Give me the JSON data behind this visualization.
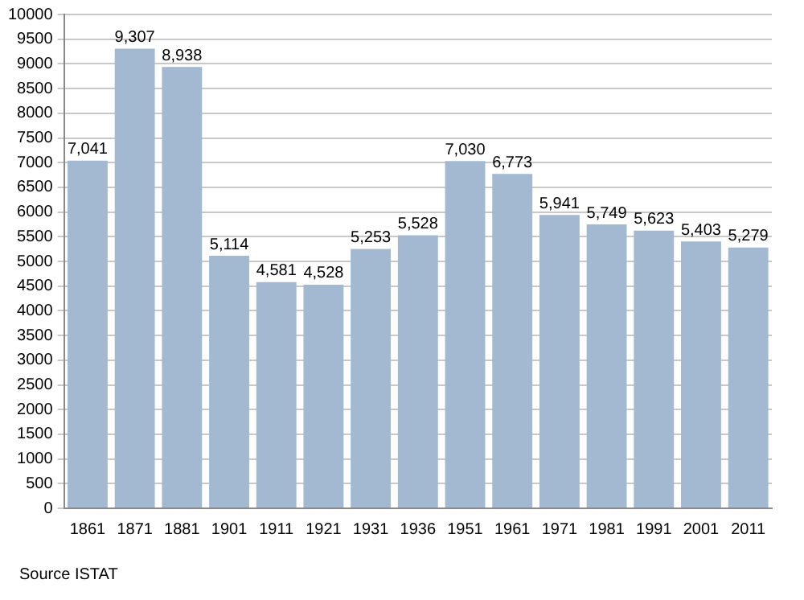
{
  "chart_data": {
    "type": "bar",
    "categories": [
      "1861",
      "1871",
      "1881",
      "1901",
      "1911",
      "1921",
      "1931",
      "1936",
      "1951",
      "1961",
      "1971",
      "1981",
      "1991",
      "2001",
      "2011"
    ],
    "values": [
      7041,
      9307,
      8938,
      5114,
      4581,
      4528,
      5253,
      5528,
      7030,
      6773,
      5941,
      5749,
      5623,
      5403,
      5279
    ],
    "value_labels": [
      "7,041",
      "9,307",
      "8,938",
      "5,114",
      "4,581",
      "4,528",
      "5,253",
      "5,528",
      "7,030",
      "6,773",
      "5,941",
      "5,749",
      "5,623",
      "5,403",
      "5,279"
    ],
    "color": "#a3b9d2",
    "ylim": [
      0,
      10000
    ],
    "yticks": [
      0,
      500,
      1000,
      1500,
      2000,
      2500,
      3000,
      3500,
      4000,
      4500,
      5000,
      5500,
      6000,
      6500,
      7000,
      7500,
      8000,
      8500,
      9000,
      9500,
      10000
    ],
    "grid": "y",
    "annotations": [
      "Source ISTAT"
    ]
  }
}
